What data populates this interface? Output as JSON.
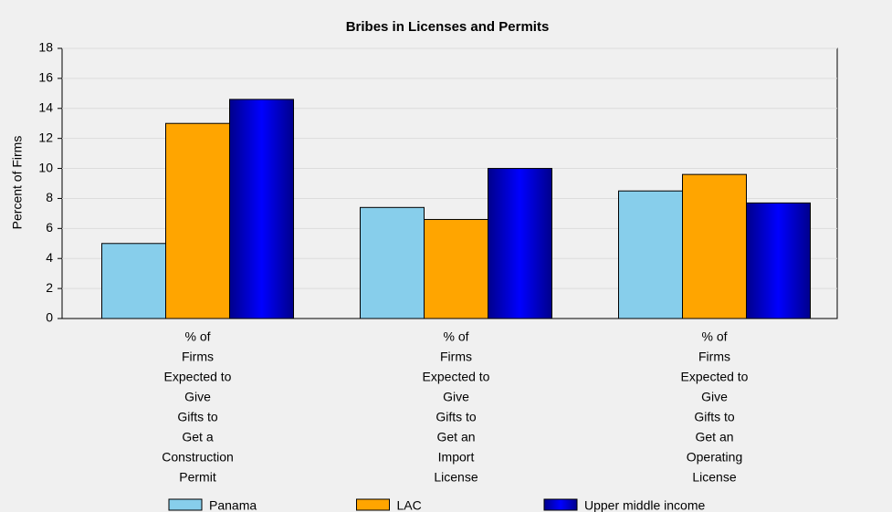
{
  "chart_data": {
    "type": "bar",
    "title": "Bribes in Licenses and Permits",
    "y_label": "Percent of Firms",
    "categories": [
      [
        "% of",
        "Firms",
        "Expected to",
        "Give",
        "Gifts to",
        "Get a",
        "Construction",
        "Permit"
      ],
      [
        "% of",
        "Firms",
        "Expected to",
        "Give",
        "Gifts to",
        "Get an",
        "Import",
        "License"
      ],
      [
        "% of",
        "Firms",
        "Expected to",
        "Give",
        "Gifts to",
        "Get an",
        "Operating",
        "License"
      ]
    ],
    "series": [
      {
        "name": "Panama",
        "color": "#87ceeb",
        "values": [
          5.0,
          7.4,
          8.5
        ]
      },
      {
        "name": "LAC",
        "color": "#ffa500",
        "values": [
          13.0,
          6.6,
          9.6
        ]
      },
      {
        "name": "Upper middle income",
        "color": "#0000cd",
        "values": [
          14.6,
          10.0,
          7.7
        ]
      }
    ],
    "ylim": [
      0,
      18
    ],
    "yticks": [
      0,
      2,
      4,
      6,
      8,
      10,
      12,
      14,
      16,
      18
    ],
    "grid": true,
    "legend": "bottom"
  }
}
